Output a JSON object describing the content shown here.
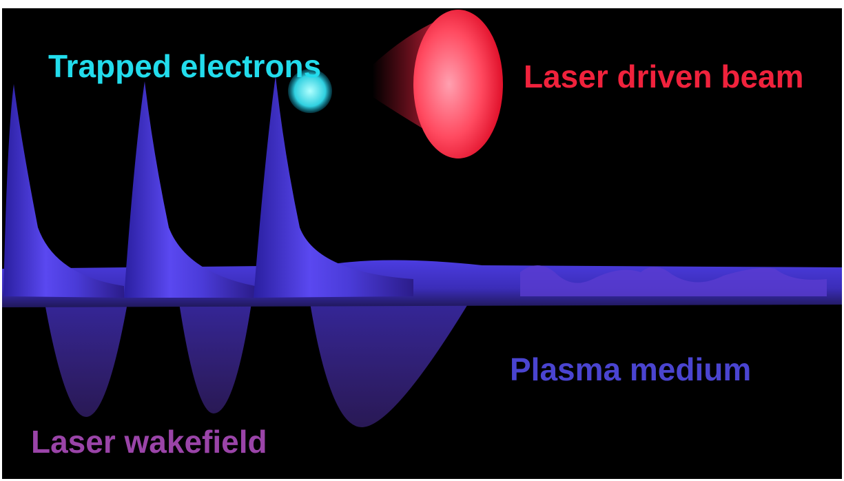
{
  "labels": {
    "trapped_electrons": "Trapped electrons",
    "laser_beam": "Laser driven beam",
    "plasma_medium": "Plasma medium",
    "laser_wakefield": "Laser wakefield"
  }
}
